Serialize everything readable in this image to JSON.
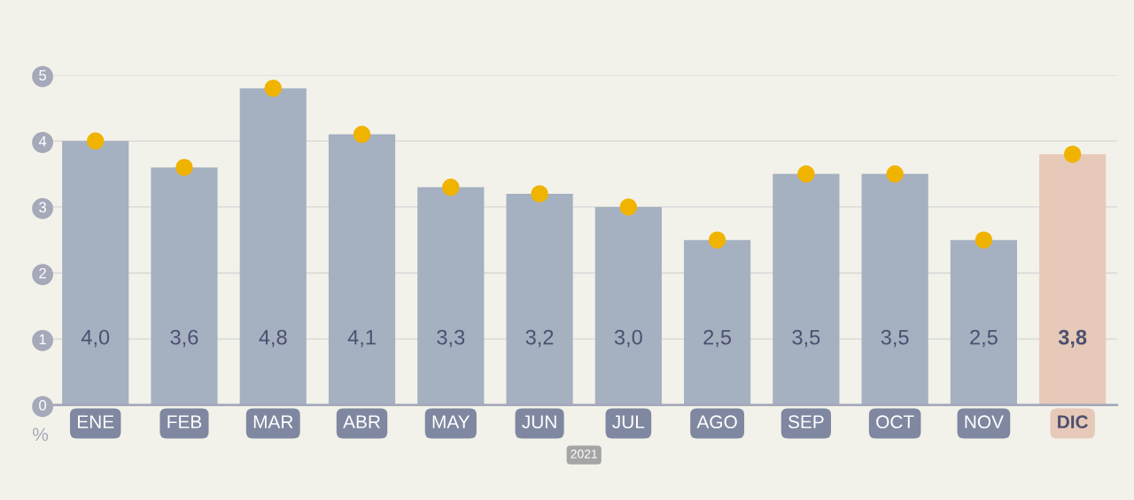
{
  "chart_data": {
    "type": "bar",
    "xlabel": "2021",
    "ylabel": "%",
    "categories": [
      "ENE",
      "FEB",
      "MAR",
      "ABR",
      "MAY",
      "JUN",
      "JUL",
      "AGO",
      "SEP",
      "OCT",
      "NOV",
      "DIC"
    ],
    "series": [
      {
        "values": [
          4.0,
          3.6,
          4.8,
          4.1,
          3.3,
          3.2,
          3.0,
          2.5,
          3.5,
          3.5,
          2.5,
          3.8
        ],
        "colors": [
          "#a5b0c1",
          "#a5b0c1",
          "#a5b0c1",
          "#a5b0c1",
          "#a5b0c1",
          "#a5b0c1",
          "#a5b0c1",
          "#a5b0c1",
          "#a5b0c1",
          "#a5b0c1",
          "#a5b0c1",
          "#e6c9b8"
        ],
        "value_labels": [
          "4,0",
          "3,6",
          "4,8",
          "4,1",
          "3,3",
          "3,2",
          "3,0",
          "2,5",
          "3,5",
          "3,5",
          "2,5",
          "3,8"
        ]
      },
      {
        "type": "scatter",
        "color": "#f0b400",
        "x": [
          "ENE",
          "FEB",
          "MAR",
          "ABR",
          "MAY",
          "JUN",
          "JUL",
          "AGO",
          "SEP",
          "OCT",
          "NOV",
          "DIC"
        ],
        "values": [
          4.0,
          3.6,
          4.8,
          4.1,
          3.3,
          3.2,
          3.0,
          2.5,
          3.5,
          3.5,
          2.5,
          3.8
        ]
      }
    ],
    "ylim": [
      0,
      5
    ],
    "yticks": [
      0,
      1,
      2,
      3,
      4,
      5
    ],
    "grid": "y",
    "marker": "circle"
  }
}
